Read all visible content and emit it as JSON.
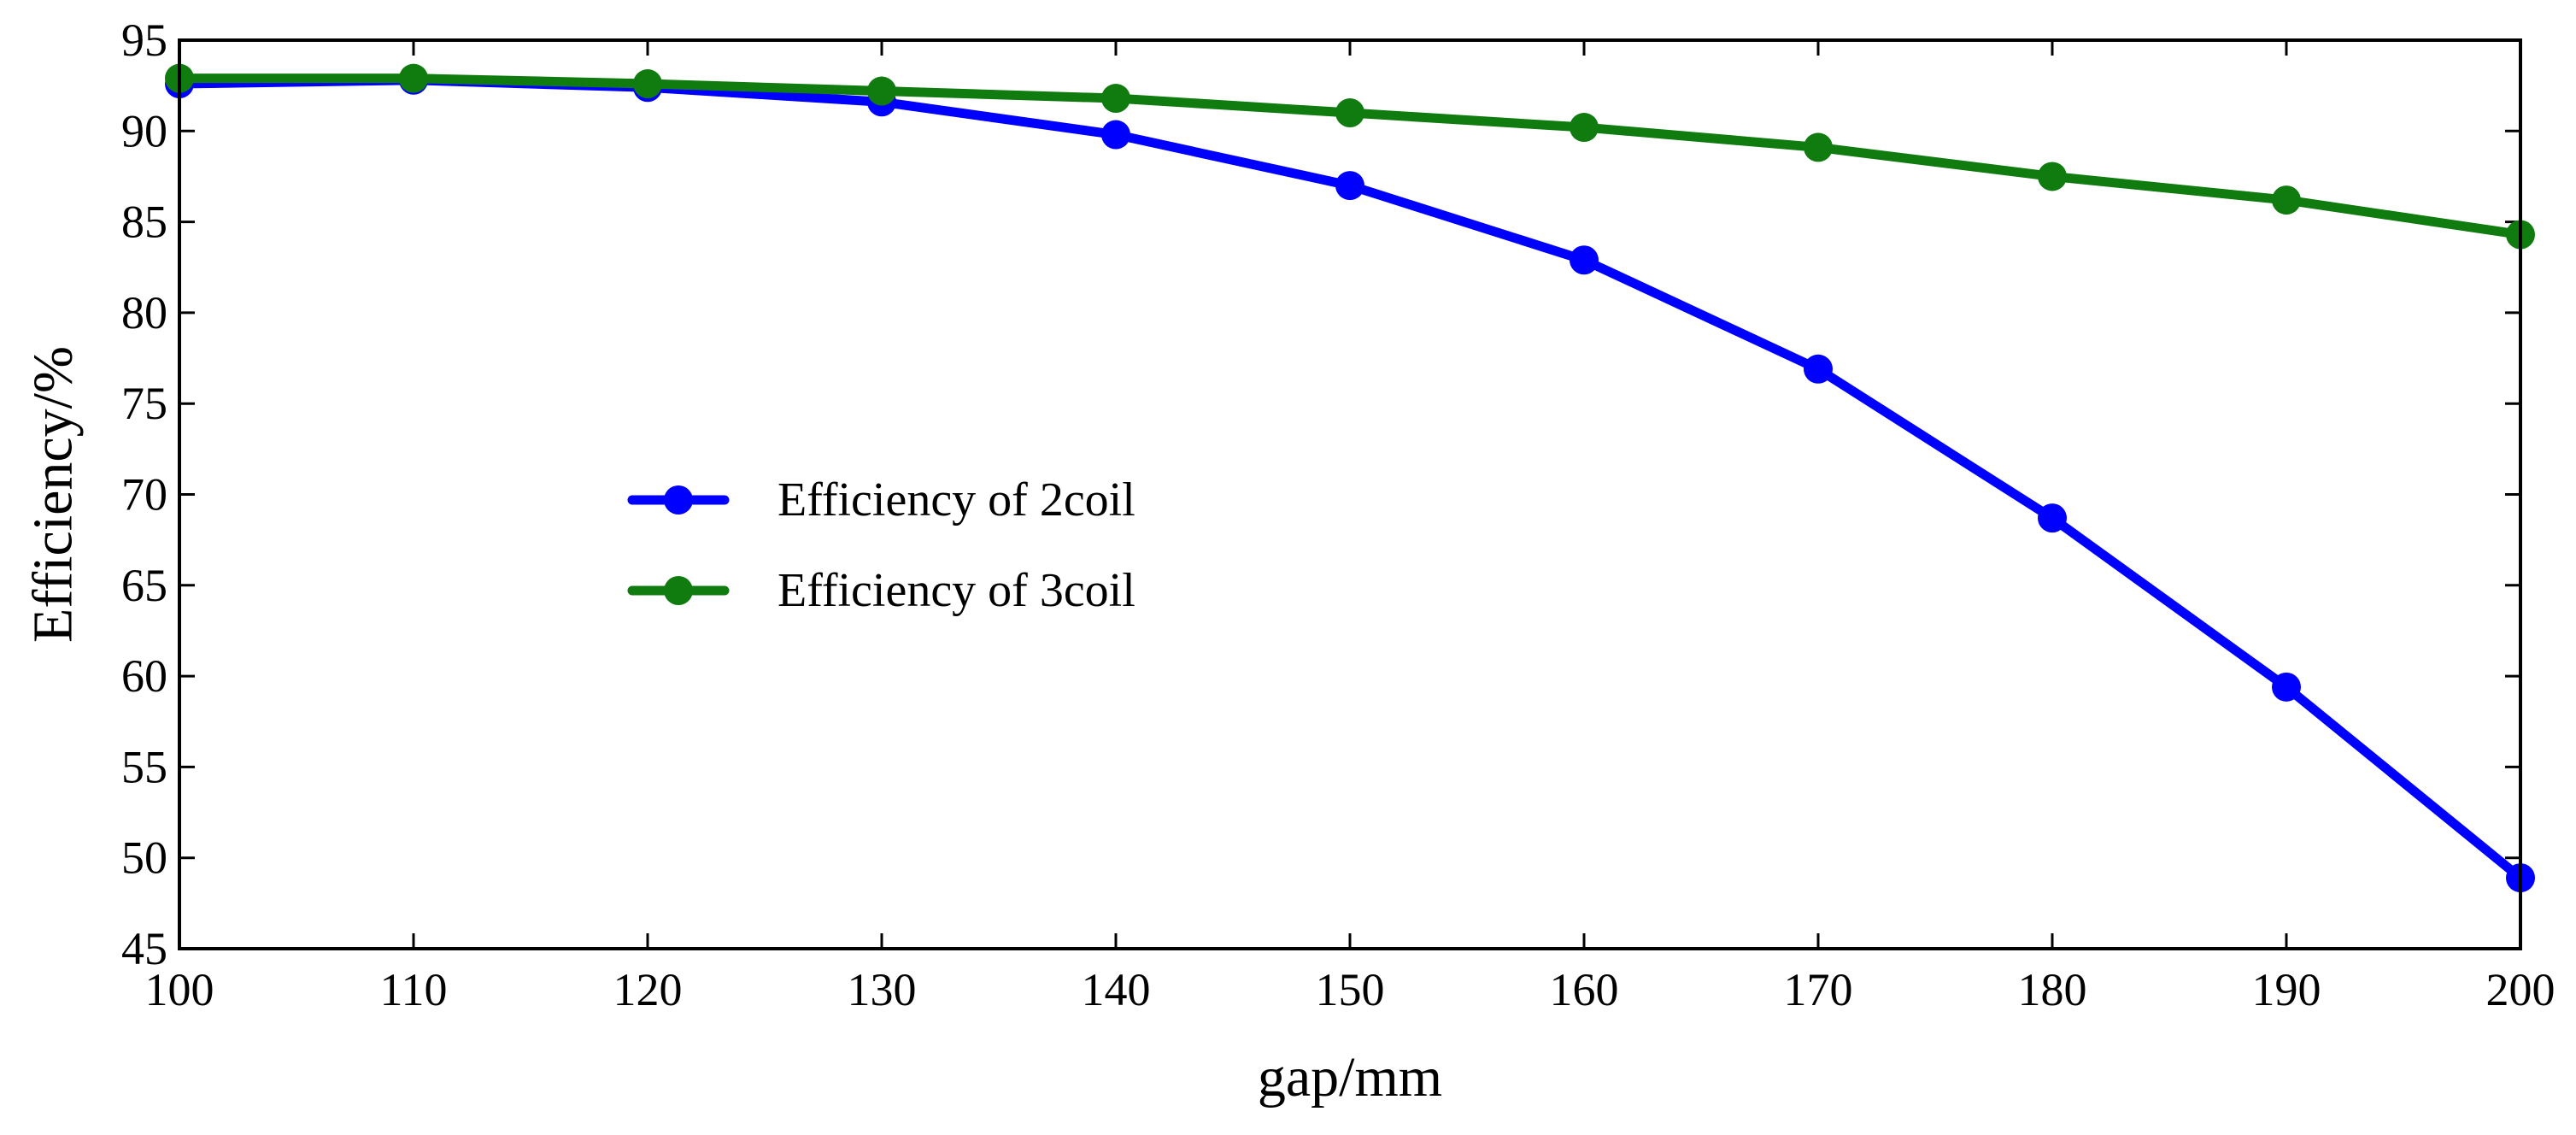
{
  "chart_data": {
    "type": "line",
    "title": "",
    "xlabel": "gap/mm",
    "ylabel": "Efficiency/%",
    "x": [
      100,
      110,
      120,
      130,
      140,
      150,
      160,
      170,
      180,
      190,
      200
    ],
    "xlim": [
      100,
      200
    ],
    "ylim": [
      45,
      95
    ],
    "xticks": [
      "100",
      "110",
      "120",
      "130",
      "140",
      "150",
      "160",
      "170",
      "180",
      "190",
      "200"
    ],
    "yticks": [
      "45",
      "50",
      "55",
      "60",
      "65",
      "70",
      "75",
      "80",
      "85",
      "90",
      "95"
    ],
    "grid": false,
    "legend_position": "center-left",
    "series": [
      {
        "name": "Efficiency of 2coil",
        "color": "#0000ff",
        "values": [
          92.6,
          92.8,
          92.4,
          91.6,
          89.8,
          87.0,
          82.9,
          76.9,
          68.7,
          59.4,
          48.9
        ]
      },
      {
        "name": "Efficiency of 3coil",
        "color": "#107c10",
        "values": [
          92.9,
          92.9,
          92.6,
          92.2,
          91.8,
          91.0,
          90.2,
          89.1,
          87.5,
          86.2,
          84.3
        ]
      }
    ]
  }
}
